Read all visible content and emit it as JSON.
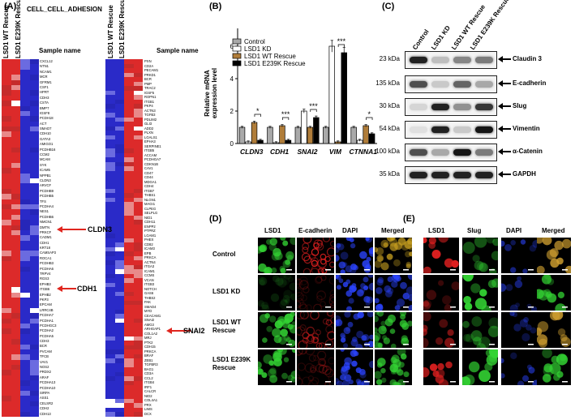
{
  "panel_labels": {
    "a": "(A)",
    "b": "(B)",
    "c": "(C)",
    "d": "(D)",
    "e": "(E)"
  },
  "panel_a": {
    "title": "CELL_CELL_ADHESION",
    "left_cols": [
      "LSD1 WT Rescue",
      "LSD1 E239K Rescue"
    ],
    "right_cols": [
      "LSD1 WT Rescue",
      "LSD1 E239K Rescue"
    ],
    "sample_header": "Sample name",
    "left_genes": [
      "CXCL12",
      "NTN1",
      "NCAM1",
      "MCR",
      "GFRM1",
      "CSF1",
      "HPRT",
      "CDH3",
      "CSTA",
      "BMP7",
      "IGSF8",
      "PCDH18",
      "ACT",
      "SMAD7",
      "CDH10",
      "GATA3",
      "AMIGO1",
      "PCDHB16",
      "CCM2",
      "MCAM",
      "SYK",
      "ICAM5",
      "NPPB1",
      "CLDN3",
      "ARVCF",
      "PCDHB9",
      "PCDHB5",
      "TFS",
      "PCDHA4",
      "NES1",
      "PCDHB6",
      "NMCN1",
      "DMTN",
      "PRKCF",
      "CADM1",
      "CDH1",
      "KRT18",
      "CAMSAP3",
      "ROCA1",
      "PCDHB3",
      "PCDHA6",
      "TRPV4",
      "RGS3",
      "EPHB3",
      "ITGB6",
      "EPHB2",
      "PKP3",
      "EPCAM",
      "LRRC4B",
      "PCDHA7",
      "PCDHA1",
      "PCDHGC3",
      "PCDHA2",
      "PCDHA5",
      "CDH3",
      "BCR",
      "PVCAM",
      "TFCB",
      "VAV1",
      "NOS2",
      "PRDX2",
      "ARAF",
      "PCDHA13",
      "PCDHA10",
      "SIRPA",
      "ASS1",
      "CELSR2",
      "CDH2",
      "CDH13"
    ],
    "right_genes": [
      "PXN",
      "CD2A",
      "PECAM1",
      "PRKD1",
      "BCR",
      "PMP",
      "TRAC2",
      "IGSF5",
      "ROPN1",
      "ITGB1",
      "PKP4",
      "ACTN3",
      "TGFB3",
      "PDLIM2",
      "GLI3",
      "ADD2",
      "PLXN",
      "LGALS1",
      "EPHA3",
      "SERPINE1",
      "ITGB5",
      "ACCAM",
      "PCDHGA7",
      "CDKN1B",
      "CAV1",
      "CD47",
      "CD44",
      "MDGA1",
      "CDH4",
      "ITGB7",
      "THBS1",
      "NLGN1",
      "MAGI1",
      "CLPEG",
      "SELPLG",
      "NID1",
      "CDH11",
      "ENPP2",
      "PTPRZ",
      "LGAM1",
      "PHEX",
      "CD82",
      "ICAM3",
      "EPB",
      "PRKCA",
      "ACTN4",
      "ITGA3",
      "ICAM1",
      "CCMS",
      "VCAN",
      "ITGB3",
      "NOTCH",
      "GAS6",
      "THBS2",
      "PAK",
      "SMAD4",
      "MYD",
      "CEACAM1",
      "SNAI2",
      "AMG3",
      "ARHGAP1",
      "COL1A2",
      "MRJ",
      "PTK2",
      "CDH15",
      "PRKCA",
      "BRAF",
      "ZEB1",
      "TGFBR3",
      "BAG1",
      "CD3A",
      "CCL2",
      "ITGB4",
      "IRF1",
      "CALCR",
      "NID2",
      "COL4A1",
      "PRX",
      "LIMS",
      "DCX"
    ]
  },
  "arrows": {
    "a1": "CLDN3",
    "a2": "CDH1",
    "a3": "SNAI2"
  },
  "panel_b": {
    "ylabel": "Relative mRNA\nexpression level",
    "legend": [
      "Control",
      "LSD1 KD",
      "LSD1 WT Rescue",
      "LSD1 E239K Rescue"
    ],
    "sig": [
      "*",
      "***",
      "***",
      "***",
      "*"
    ]
  },
  "chart_data": {
    "type": "bar",
    "categories": [
      "CLDN3",
      "CDH1",
      "SNAI2",
      "VIM",
      "CTNNA1"
    ],
    "series": [
      {
        "name": "Control",
        "values": [
          1.0,
          1.0,
          1.0,
          1.0,
          1.0
        ]
      },
      {
        "name": "LSD1 KD",
        "values": [
          0.1,
          0.05,
          2.0,
          6.0,
          0.2
        ]
      },
      {
        "name": "LSD1 WT Rescue",
        "values": [
          1.3,
          1.1,
          1.0,
          0.1,
          1.1
        ]
      },
      {
        "name": "LSD1 E239K Rescue",
        "values": [
          0.2,
          0.2,
          1.6,
          5.6,
          0.6
        ]
      }
    ],
    "yticks": [
      0,
      2,
      4,
      6
    ],
    "ylim": [
      0,
      7
    ],
    "colors": [
      "#a9a9a9",
      "#ffffff",
      "#b07d3a",
      "#000000"
    ]
  },
  "panel_c": {
    "lanes": [
      "Control",
      "LSD1 KD",
      "LSD1 WT Rescue",
      "LSD1 E239K Rescue"
    ],
    "rows": [
      {
        "kda": "23 kDa",
        "name": "Claudin 3",
        "bands": [
          0.9,
          0.2,
          0.45,
          0.5
        ]
      },
      {
        "kda": "135 kDa",
        "name": "E-cadherin",
        "bands": [
          0.7,
          0.15,
          0.6,
          0.3
        ]
      },
      {
        "kda": "30 kDa",
        "name": "Slug",
        "bands": [
          0.1,
          0.9,
          0.4,
          0.8
        ]
      },
      {
        "kda": "54 kDa",
        "name": "Vimentin",
        "bands": [
          0.05,
          0.9,
          0.15,
          0.95
        ]
      },
      {
        "kda": "100 kDa",
        "name": "α-Catenin",
        "bands": [
          0.7,
          0.3,
          0.95,
          0.5
        ]
      },
      {
        "kda": "35 kDa",
        "name": "GAPDH",
        "bands": [
          0.9,
          0.9,
          0.9,
          0.9
        ]
      }
    ]
  },
  "panel_d": {
    "cols": [
      "LSD1",
      "E-cadherin",
      "DAPI",
      "Merged"
    ],
    "rows": [
      "Control",
      "LSD1 KD",
      "LSD1 WT\nRescue",
      "LSD1 E239K\nRescue"
    ]
  },
  "panel_e": {
    "cols": [
      "LSD1",
      "Slug",
      "DAPI",
      "Merged"
    ]
  }
}
